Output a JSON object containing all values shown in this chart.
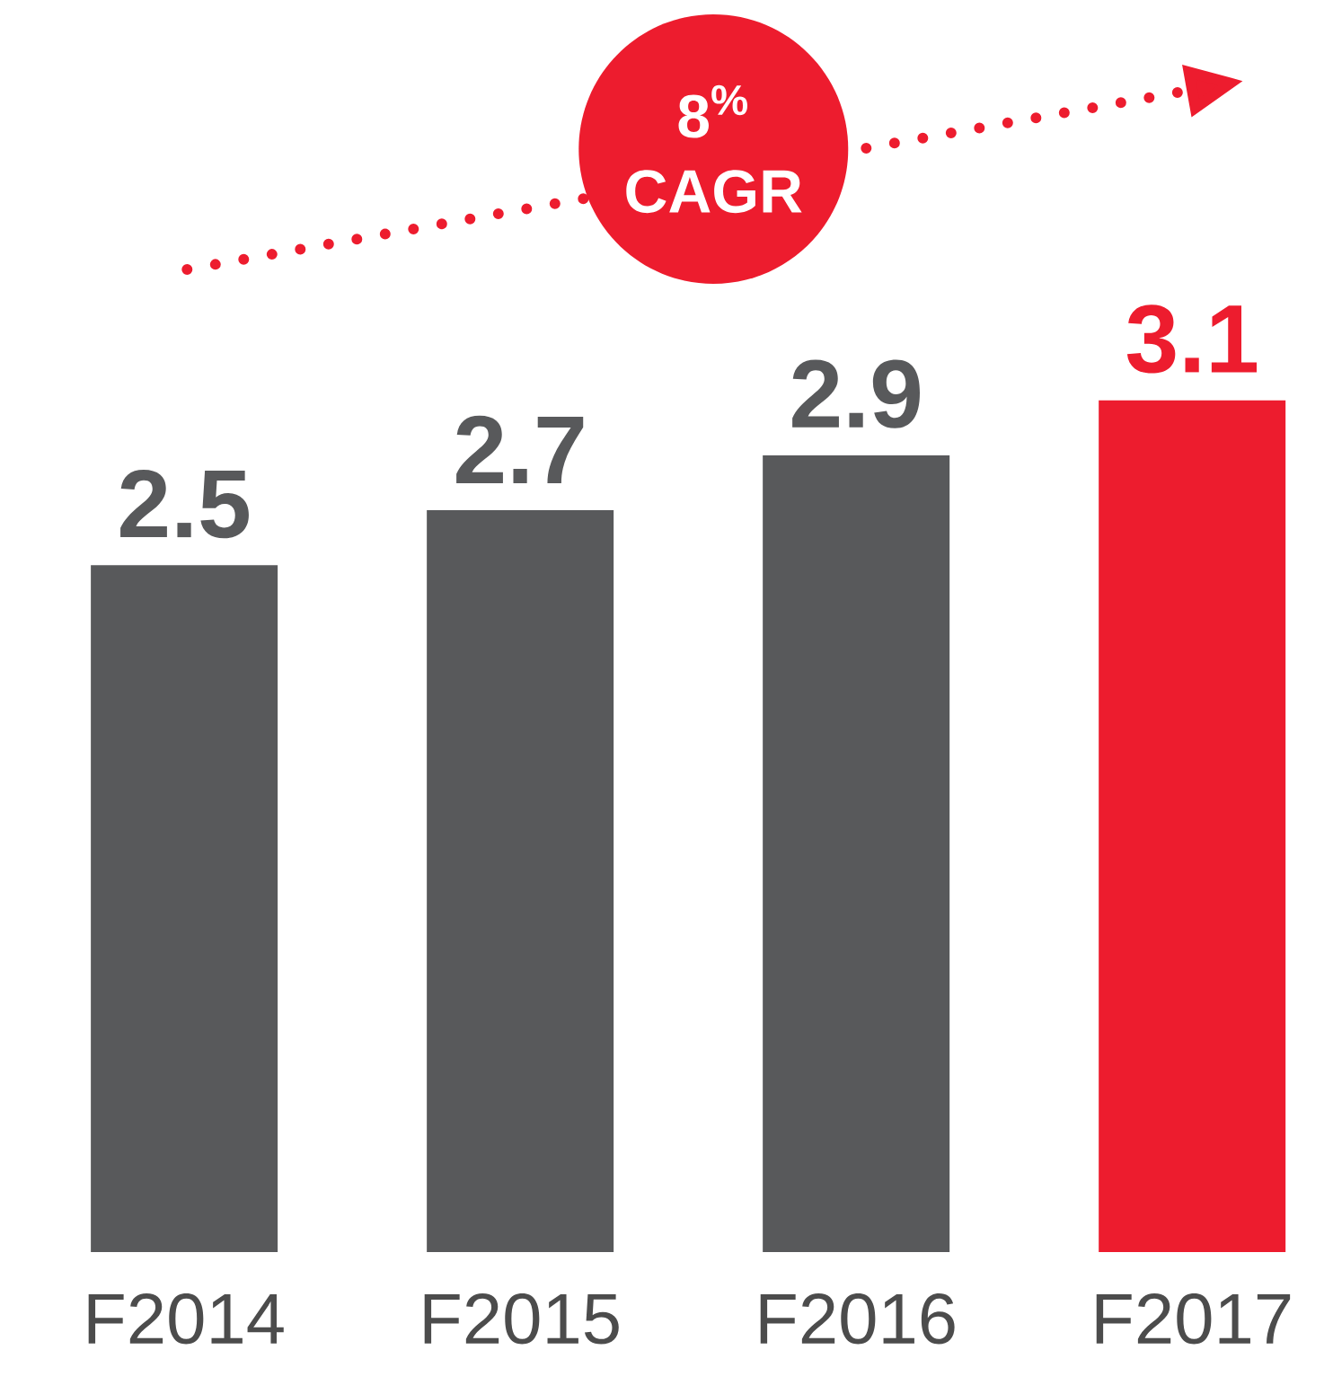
{
  "chart_data": {
    "type": "bar",
    "categories": [
      "F2014",
      "F2015",
      "F2016",
      "F2017"
    ],
    "values": [
      2.5,
      2.7,
      2.9,
      3.1
    ],
    "colors": [
      "#58595b",
      "#58595b",
      "#58595b",
      "#ed1c2e"
    ],
    "data_labels": true,
    "annotations": [
      "8$^{%}$ CAGR"
    ]
  }
}
